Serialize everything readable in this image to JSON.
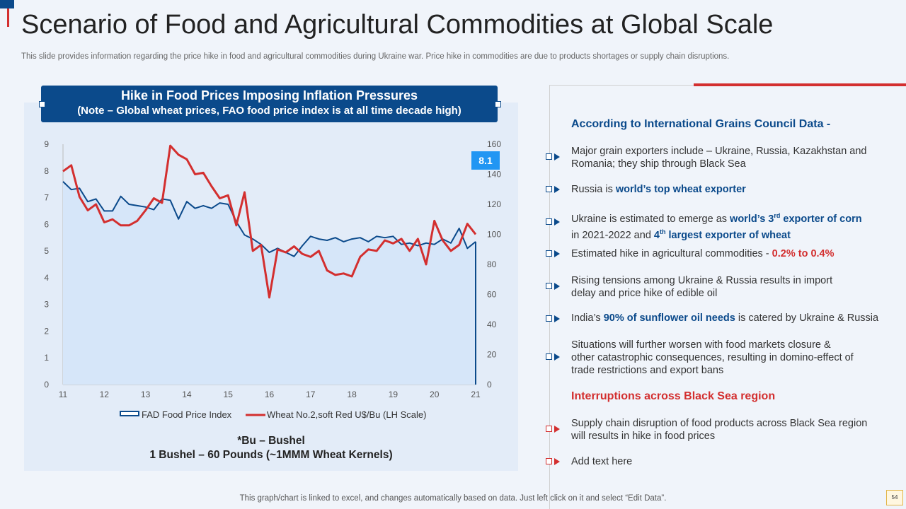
{
  "slide": {
    "title": "Scenario of Food and Agricultural Commodities at Global Scale",
    "subtitle": "This slide provides information regarding the price hike in food and agricultural commodities during Ukraine war. Price hike in commodities are due to products shortages or supply chain disruptions.",
    "footer": "This graph/chart is linked to excel,  and changes automatically based on data. Just left click on it and select “Edit Data”.",
    "page_number": "54"
  },
  "chart_panel": {
    "heading_line1": "Hike in Food Prices Imposing Inflation Pressures",
    "heading_line2": "(Note – Global wheat prices, FAO food price index is at all time decade high)",
    "note_line1": "*Bu – Bushel",
    "note_line2": "1 Bushel – 60 Pounds (~1MMM Wheat Kernels)"
  },
  "chart_data": {
    "type": "line",
    "x_tick_labels": [
      "11",
      "12",
      "13",
      "14",
      "15",
      "16",
      "17",
      "18",
      "19",
      "20",
      "21"
    ],
    "xlim": [
      11,
      21
    ],
    "y_left_ticks": [
      "0",
      "1",
      "2",
      "3",
      "4",
      "5",
      "6",
      "7",
      "8",
      "9"
    ],
    "ylim_left": [
      0,
      9
    ],
    "y_right_ticks": [
      "0",
      "20",
      "40",
      "60",
      "80",
      "100",
      "120",
      "140",
      "160"
    ],
    "ylim_right": [
      0,
      160
    ],
    "callout_value": "8.1",
    "legend_position": "bottom",
    "series": [
      {
        "name": "FAD Food Price Index",
        "axis": "left",
        "style": "area",
        "color": "#0b4a8b",
        "fill": "#d6e6f9",
        "x": [
          11,
          11.2,
          11.4,
          11.6,
          11.8,
          12.0,
          12.2,
          12.4,
          12.6,
          12.8,
          13.0,
          13.2,
          13.4,
          13.6,
          13.8,
          14.0,
          14.2,
          14.4,
          14.6,
          14.8,
          15.0,
          15.2,
          15.4,
          15.6,
          15.8,
          16.0,
          16.2,
          16.4,
          16.6,
          16.8,
          17.0,
          17.2,
          17.4,
          17.6,
          17.8,
          18.0,
          18.2,
          18.4,
          18.6,
          18.8,
          19.0,
          19.2,
          19.4,
          19.6,
          19.8,
          20.0,
          20.2,
          20.4,
          20.6,
          20.8,
          21.0
        ],
        "values": [
          7.6,
          7.3,
          7.35,
          6.85,
          6.95,
          6.5,
          6.5,
          7.05,
          6.75,
          6.7,
          6.65,
          6.55,
          6.95,
          6.9,
          6.2,
          6.85,
          6.6,
          6.7,
          6.6,
          6.8,
          6.75,
          6.1,
          5.6,
          5.45,
          5.25,
          4.95,
          5.1,
          4.95,
          4.8,
          5.2,
          5.55,
          5.45,
          5.4,
          5.5,
          5.35,
          5.45,
          5.5,
          5.35,
          5.55,
          5.5,
          5.55,
          5.25,
          5.3,
          5.2,
          5.3,
          5.25,
          5.45,
          5.3,
          5.85,
          5.1,
          5.35
        ]
      },
      {
        "name": "Wheat No.2,soft Red U$/Bu (LH Scale)",
        "axis": "right",
        "style": "line",
        "color": "#d32f2f",
        "x": [
          11,
          11.2,
          11.4,
          11.6,
          11.8,
          12.0,
          12.2,
          12.4,
          12.6,
          12.8,
          13.0,
          13.2,
          13.4,
          13.6,
          13.8,
          14.0,
          14.2,
          14.4,
          14.6,
          14.8,
          15.0,
          15.2,
          15.4,
          15.6,
          15.8,
          16.0,
          16.2,
          16.4,
          16.6,
          16.8,
          17.0,
          17.2,
          17.4,
          17.6,
          17.8,
          18.0,
          18.2,
          18.4,
          18.6,
          18.8,
          19.0,
          19.2,
          19.4,
          19.6,
          19.8,
          20.0,
          20.2,
          20.4,
          20.6,
          20.8,
          21.0
        ],
        "values": [
          142,
          146,
          125,
          116,
          120,
          108,
          110,
          106,
          106,
          109,
          116,
          124,
          121,
          159,
          153,
          150,
          140,
          141,
          132,
          124,
          126,
          106,
          128,
          89,
          93,
          58,
          90,
          88,
          92,
          87,
          85,
          89,
          76,
          73,
          74,
          72,
          85,
          90,
          89,
          96,
          94,
          97,
          89,
          97,
          80,
          109,
          96,
          89,
          93,
          107,
          100
        ]
      }
    ]
  },
  "right_panel": {
    "heading1": "According to International Grains Council Data -",
    "b1": "Major grain exporters include – Ukraine,  Russia, Kazakhstan and Romania; they ship through Black Sea",
    "b2_pre": "Russia is ",
    "b2_bold": "world’s top wheat exporter",
    "b3_pre": "Ukraine  is estimated to emerge as ",
    "b3_bold1a": "world’s 3",
    "b3_sup1": "rd",
    "b3_bold1b": " exporter of corn",
    "b3_mid": " in 2021-2022 and ",
    "b3_bold2a": "4",
    "b3_sup2": "th",
    "b3_bold2b": " largest exporter of wheat",
    "b4_pre": "Estimated hike in agricultural commodities - ",
    "b4_bold": "0.2% to 0.4%",
    "b5": "Rising tensions among Ukraine  & Russia results in import delay and price hike of edible oil",
    "b6_pre": "India’s ",
    "b6_bold": "90% of sunflower oil needs",
    "b6_post": " is catered by Ukraine  & Russia",
    "b7": "Situations will further worsen with food markets closure & other catastrophic consequences, resulting in domino-effect of trade restrictions and export bans",
    "heading2": "Interruptions across Black Sea region",
    "b8": "Supply chain disruption of food products across Black Sea region will results in hike in food prices",
    "b9": "Add text here"
  },
  "colors": {
    "brand_blue": "#0b4a8b",
    "accent_red": "#d32f2f",
    "callout_blue": "#2196f3"
  }
}
